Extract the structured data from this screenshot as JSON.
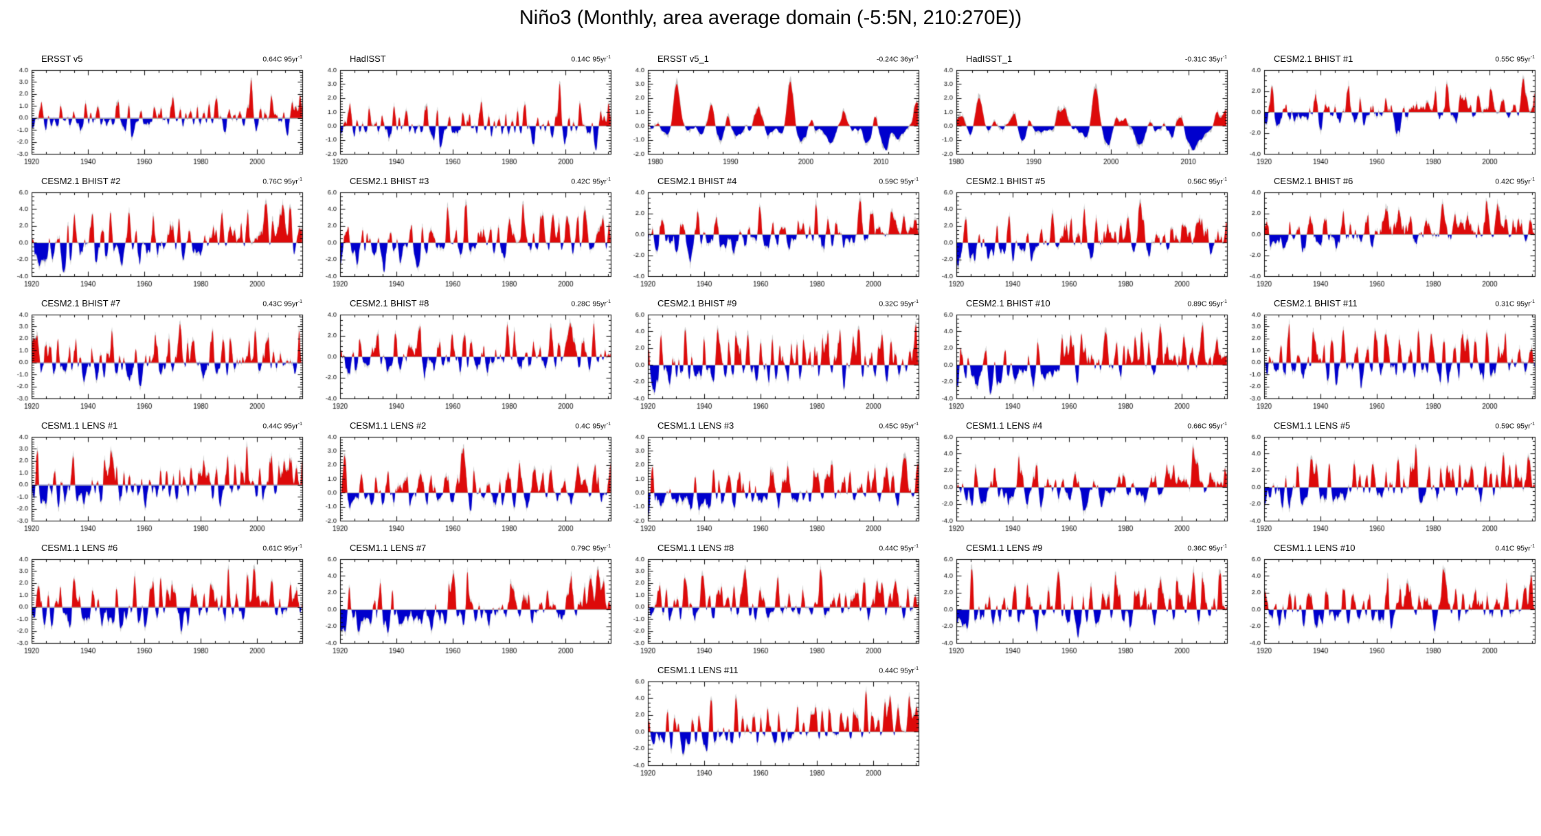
{
  "chart_data": {
    "type": "area",
    "subtype": "monthly-anomaly-timeseries-grid",
    "title": "Niño3 (Monthly, area average domain (-5:5N, 210:270E))",
    "grid": {
      "rows": 6,
      "cols": 5
    },
    "legend": "none",
    "grid_lines": "off",
    "colors": {
      "positive_anomaly": "#dd0a0a",
      "negative_anomaly": "#0000cd",
      "raw_monthly": "#c4c4c4",
      "zero_line": "#a8a8a8",
      "axis": "#000000",
      "background": "#ffffff"
    },
    "ylabel": "",
    "xlabel": "",
    "panels": [
      {
        "row": 1,
        "col": 1,
        "name": "ERSST v5",
        "trend_label": "0.64C 95yr",
        "trend_exp": "-1",
        "trend_value": 0.64,
        "trend_period_years": 95,
        "ylim": [
          -3,
          4
        ],
        "ytick_step": 1,
        "xlim": [
          1920,
          2016
        ],
        "xticks": [
          1920,
          1940,
          1960,
          1980,
          2000
        ],
        "xminor_step": 5,
        "seed": 101,
        "peaks": [
          [
            1925.9,
            1.5
          ],
          [
            1940.8,
            1.9
          ],
          [
            1972.9,
            1.8
          ],
          [
            1982.9,
            2.3
          ],
          [
            1997.9,
            3.3
          ],
          [
            2015.2,
            2.7
          ],
          [
            1955.5,
            -1.6
          ],
          [
            1973.9,
            -1.5
          ],
          [
            1988.8,
            -1.6
          ],
          [
            1999.9,
            -1.4
          ],
          [
            2010.7,
            -1.3
          ]
        ]
      },
      {
        "row": 1,
        "col": 2,
        "name": "HadISST",
        "trend_label": "0.14C 95yr",
        "trend_exp": "-1",
        "trend_value": 0.14,
        "trend_period_years": 95,
        "ylim": [
          -2,
          4
        ],
        "ytick_step": 1,
        "xlim": [
          1920,
          2016
        ],
        "xticks": [
          1920,
          1940,
          1960,
          1980,
          2000
        ],
        "xminor_step": 5,
        "seed": 101,
        "peaks": [
          [
            1925.9,
            1.5
          ],
          [
            1940.8,
            1.9
          ],
          [
            1972.9,
            1.8
          ],
          [
            1982.9,
            2.3
          ],
          [
            1997.9,
            3.3
          ],
          [
            2015.2,
            2.7
          ],
          [
            1955.5,
            -1.6
          ],
          [
            1973.9,
            -1.5
          ],
          [
            1988.8,
            -1.6
          ],
          [
            1999.9,
            -1.4
          ],
          [
            2010.7,
            -1.3
          ]
        ]
      },
      {
        "row": 1,
        "col": 3,
        "name": "ERSST v5_1",
        "trend_label": "-0.24C 36yr",
        "trend_exp": "-1",
        "trend_value": -0.24,
        "trend_period_years": 36,
        "ylim": [
          -2,
          4
        ],
        "ytick_step": 1,
        "xlim": [
          1979,
          2015
        ],
        "xticks": [
          1980,
          1990,
          2000,
          2010
        ],
        "xminor_step": 2,
        "seed": 103,
        "peaks": [
          [
            1982.9,
            2.5
          ],
          [
            1987.6,
            1.4
          ],
          [
            1997.9,
            3.4
          ],
          [
            2014.8,
            2.0
          ],
          [
            1988.8,
            -1.6
          ],
          [
            1999.8,
            -1.3
          ],
          [
            2007.9,
            -1.2
          ],
          [
            2010.7,
            -1.4
          ]
        ]
      },
      {
        "row": 1,
        "col": 4,
        "name": "HadISST_1",
        "trend_label": "-0.31C 35yr",
        "trend_exp": "-1",
        "trend_value": -0.31,
        "trend_period_years": 35,
        "ylim": [
          -2,
          4
        ],
        "ytick_step": 1,
        "xlim": [
          1980,
          2015
        ],
        "xticks": [
          1980,
          1990,
          2000,
          2010
        ],
        "xminor_step": 2,
        "seed": 103,
        "peaks": [
          [
            1982.9,
            2.5
          ],
          [
            1987.6,
            1.4
          ],
          [
            1997.9,
            3.4
          ],
          [
            2014.8,
            2.0
          ],
          [
            1988.8,
            -1.6
          ],
          [
            1999.8,
            -1.3
          ],
          [
            2007.9,
            -1.2
          ],
          [
            2010.7,
            -1.4
          ]
        ]
      },
      {
        "row": 1,
        "col": 5,
        "name": "CESM2.1 BHIST #1",
        "trend_label": "0.55C 95yr",
        "trend_exp": "-1",
        "trend_value": 0.55,
        "trend_period_years": 95,
        "ylim": [
          -4,
          4
        ],
        "ytick_step": 2,
        "xlim": [
          1920,
          2016
        ],
        "xticks": [
          1920,
          1940,
          1960,
          1980,
          2000
        ],
        "xminor_step": 5,
        "seed": 105
      },
      {
        "row": 2,
        "col": 1,
        "name": "CESM2.1 BHIST #2",
        "trend_label": "0.76C 95yr",
        "trend_exp": "-1",
        "trend_value": 0.76,
        "trend_period_years": 95,
        "ylim": [
          -4,
          6
        ],
        "ytick_step": 2,
        "xlim": [
          1920,
          2016
        ],
        "xticks": [
          1920,
          1940,
          1960,
          1980,
          2000
        ],
        "xminor_step": 5,
        "seed": 106
      },
      {
        "row": 2,
        "col": 2,
        "name": "CESM2.1 BHIST #3",
        "trend_label": "0.42C 95yr",
        "trend_exp": "-1",
        "trend_value": 0.42,
        "trend_period_years": 95,
        "ylim": [
          -4,
          6
        ],
        "ytick_step": 2,
        "xlim": [
          1920,
          2016
        ],
        "xticks": [
          1920,
          1940,
          1960,
          1980,
          2000
        ],
        "xminor_step": 5,
        "seed": 107
      },
      {
        "row": 2,
        "col": 3,
        "name": "CESM2.1 BHIST #4",
        "trend_label": "0.59C 95yr",
        "trend_exp": "-1",
        "trend_value": 0.59,
        "trend_period_years": 95,
        "ylim": [
          -4,
          4
        ],
        "ytick_step": 2,
        "xlim": [
          1920,
          2016
        ],
        "xticks": [
          1920,
          1940,
          1960,
          1980,
          2000
        ],
        "xminor_step": 5,
        "seed": 108
      },
      {
        "row": 2,
        "col": 4,
        "name": "CESM2.1 BHIST #5",
        "trend_label": "0.56C 95yr",
        "trend_exp": "-1",
        "trend_value": 0.56,
        "trend_period_years": 95,
        "ylim": [
          -4,
          6
        ],
        "ytick_step": 2,
        "xlim": [
          1920,
          2016
        ],
        "xticks": [
          1920,
          1940,
          1960,
          1980,
          2000
        ],
        "xminor_step": 5,
        "seed": 109
      },
      {
        "row": 2,
        "col": 5,
        "name": "CESM2.1 BHIST #6",
        "trend_label": "0.42C 95yr",
        "trend_exp": "-1",
        "trend_value": 0.42,
        "trend_period_years": 95,
        "ylim": [
          -4,
          4
        ],
        "ytick_step": 2,
        "xlim": [
          1920,
          2016
        ],
        "xticks": [
          1920,
          1940,
          1960,
          1980,
          2000
        ],
        "xminor_step": 5,
        "seed": 110
      },
      {
        "row": 3,
        "col": 1,
        "name": "CESM2.1 BHIST #7",
        "trend_label": "0.43C 95yr",
        "trend_exp": "-1",
        "trend_value": 0.43,
        "trend_period_years": 95,
        "ylim": [
          -3,
          4
        ],
        "ytick_step": 1,
        "xlim": [
          1920,
          2016
        ],
        "xticks": [
          1920,
          1940,
          1960,
          1980,
          2000
        ],
        "xminor_step": 5,
        "seed": 111
      },
      {
        "row": 3,
        "col": 2,
        "name": "CESM2.1 BHIST #8",
        "trend_label": "0.28C 95yr",
        "trend_exp": "-1",
        "trend_value": 0.28,
        "trend_period_years": 95,
        "ylim": [
          -4,
          4
        ],
        "ytick_step": 2,
        "xlim": [
          1920,
          2016
        ],
        "xticks": [
          1920,
          1940,
          1960,
          1980,
          2000
        ],
        "xminor_step": 5,
        "seed": 112
      },
      {
        "row": 3,
        "col": 3,
        "name": "CESM2.1 BHIST #9",
        "trend_label": "0.32C 95yr",
        "trend_exp": "-1",
        "trend_value": 0.32,
        "trend_period_years": 95,
        "ylim": [
          -4,
          6
        ],
        "ytick_step": 2,
        "xlim": [
          1920,
          2016
        ],
        "xticks": [
          1920,
          1940,
          1960,
          1980,
          2000
        ],
        "xminor_step": 5,
        "seed": 113
      },
      {
        "row": 3,
        "col": 4,
        "name": "CESM2.1 BHIST #10",
        "trend_label": "0.89C 95yr",
        "trend_exp": "-1",
        "trend_value": 0.89,
        "trend_period_years": 95,
        "ylim": [
          -4,
          6
        ],
        "ytick_step": 2,
        "xlim": [
          1920,
          2016
        ],
        "xticks": [
          1920,
          1940,
          1960,
          1980,
          2000
        ],
        "xminor_step": 5,
        "seed": 114
      },
      {
        "row": 3,
        "col": 5,
        "name": "CESM2.1 BHIST #11",
        "trend_label": "0.31C 95yr",
        "trend_exp": "-1",
        "trend_value": 0.31,
        "trend_period_years": 95,
        "ylim": [
          -3,
          4
        ],
        "ytick_step": 1,
        "xlim": [
          1920,
          2016
        ],
        "xticks": [
          1920,
          1940,
          1960,
          1980,
          2000
        ],
        "xminor_step": 5,
        "seed": 115
      },
      {
        "row": 4,
        "col": 1,
        "name": "CESM1.1 LENS #1",
        "trend_label": "0.44C 95yr",
        "trend_exp": "-1",
        "trend_value": 0.44,
        "trend_period_years": 95,
        "ylim": [
          -3,
          4
        ],
        "ytick_step": 1,
        "xlim": [
          1920,
          2016
        ],
        "xticks": [
          1920,
          1940,
          1960,
          1980,
          2000
        ],
        "xminor_step": 5,
        "seed": 116
      },
      {
        "row": 4,
        "col": 2,
        "name": "CESM1.1 LENS #2",
        "trend_label": "0.4C 95yr",
        "trend_exp": "-1",
        "trend_value": 0.4,
        "trend_period_years": 95,
        "ylim": [
          -2,
          4
        ],
        "ytick_step": 1,
        "xlim": [
          1920,
          2016
        ],
        "xticks": [
          1920,
          1940,
          1960,
          1980,
          2000
        ],
        "xminor_step": 5,
        "seed": 117
      },
      {
        "row": 4,
        "col": 3,
        "name": "CESM1.1 LENS #3",
        "trend_label": "0.45C 95yr",
        "trend_exp": "-1",
        "trend_value": 0.45,
        "trend_period_years": 95,
        "ylim": [
          -2,
          4
        ],
        "ytick_step": 1,
        "xlim": [
          1920,
          2016
        ],
        "xticks": [
          1920,
          1940,
          1960,
          1980,
          2000
        ],
        "xminor_step": 5,
        "seed": 118
      },
      {
        "row": 4,
        "col": 4,
        "name": "CESM1.1 LENS #4",
        "trend_label": "0.66C 95yr",
        "trend_exp": "-1",
        "trend_value": 0.66,
        "trend_period_years": 95,
        "ylim": [
          -4,
          6
        ],
        "ytick_step": 2,
        "xlim": [
          1920,
          2016
        ],
        "xticks": [
          1920,
          1940,
          1960,
          1980,
          2000
        ],
        "xminor_step": 5,
        "seed": 119
      },
      {
        "row": 4,
        "col": 5,
        "name": "CESM1.1 LENS #5",
        "trend_label": "0.59C 95yr",
        "trend_exp": "-1",
        "trend_value": 0.59,
        "trend_period_years": 95,
        "ylim": [
          -4,
          6
        ],
        "ytick_step": 2,
        "xlim": [
          1920,
          2016
        ],
        "xticks": [
          1920,
          1940,
          1960,
          1980,
          2000
        ],
        "xminor_step": 5,
        "seed": 120
      },
      {
        "row": 5,
        "col": 1,
        "name": "CESM1.1 LENS #6",
        "trend_label": "0.61C 95yr",
        "trend_exp": "-1",
        "trend_value": 0.61,
        "trend_period_years": 95,
        "ylim": [
          -3,
          4
        ],
        "ytick_step": 1,
        "xlim": [
          1920,
          2016
        ],
        "xticks": [
          1920,
          1940,
          1960,
          1980,
          2000
        ],
        "xminor_step": 5,
        "seed": 121
      },
      {
        "row": 5,
        "col": 2,
        "name": "CESM1.1 LENS #7",
        "trend_label": "0.79C 95yr",
        "trend_exp": "-1",
        "trend_value": 0.79,
        "trend_period_years": 95,
        "ylim": [
          -4,
          6
        ],
        "ytick_step": 2,
        "xlim": [
          1920,
          2016
        ],
        "xticks": [
          1920,
          1940,
          1960,
          1980,
          2000
        ],
        "xminor_step": 5,
        "seed": 122
      },
      {
        "row": 5,
        "col": 3,
        "name": "CESM1.1 LENS #8",
        "trend_label": "0.44C 95yr",
        "trend_exp": "-1",
        "trend_value": 0.44,
        "trend_period_years": 95,
        "ylim": [
          -3,
          4
        ],
        "ytick_step": 1,
        "xlim": [
          1920,
          2016
        ],
        "xticks": [
          1920,
          1940,
          1960,
          1980,
          2000
        ],
        "xminor_step": 5,
        "seed": 123
      },
      {
        "row": 5,
        "col": 4,
        "name": "CESM1.1 LENS #9",
        "trend_label": "0.36C 95yr",
        "trend_exp": "-1",
        "trend_value": 0.36,
        "trend_period_years": 95,
        "ylim": [
          -4,
          6
        ],
        "ytick_step": 2,
        "xlim": [
          1920,
          2016
        ],
        "xticks": [
          1920,
          1940,
          1960,
          1980,
          2000
        ],
        "xminor_step": 5,
        "seed": 124
      },
      {
        "row": 5,
        "col": 5,
        "name": "CESM1.1 LENS #10",
        "trend_label": "0.41C 95yr",
        "trend_exp": "-1",
        "trend_value": 0.41,
        "trend_period_years": 95,
        "ylim": [
          -4,
          6
        ],
        "ytick_step": 2,
        "xlim": [
          1920,
          2016
        ],
        "xticks": [
          1920,
          1940,
          1960,
          1980,
          2000
        ],
        "xminor_step": 5,
        "seed": 125
      },
      {
        "row": 6,
        "col": 3,
        "name": "CESM1.1 LENS #11",
        "trend_label": "0.44C 95yr",
        "trend_exp": "-1",
        "trend_value": 0.44,
        "trend_period_years": 95,
        "ylim": [
          -4,
          6
        ],
        "ytick_step": 2,
        "xlim": [
          1920,
          2016
        ],
        "xticks": [
          1920,
          1940,
          1960,
          1980,
          2000
        ],
        "xminor_step": 5,
        "seed": 126
      }
    ]
  }
}
